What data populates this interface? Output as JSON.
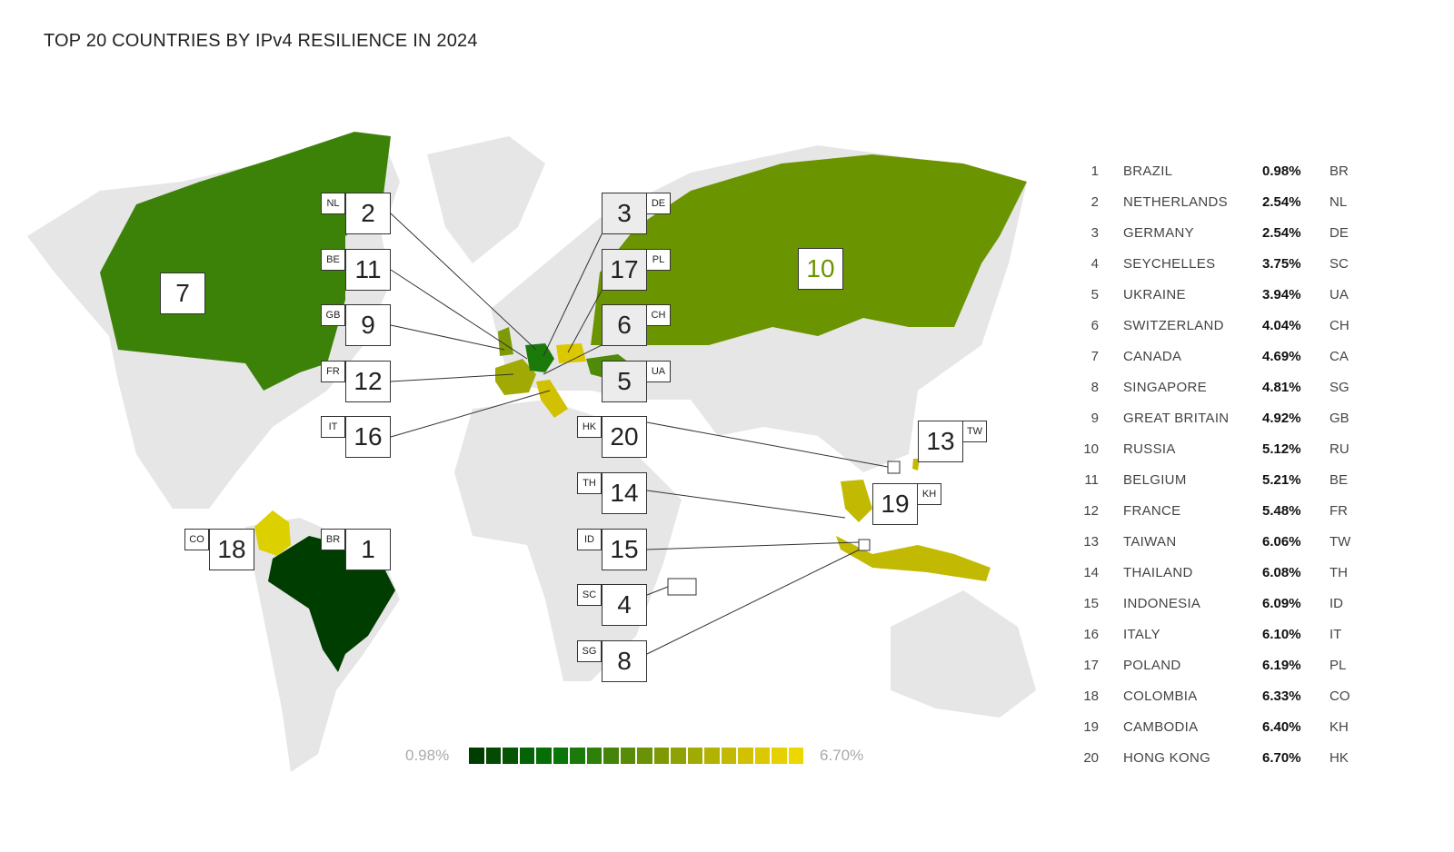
{
  "title": "TOP 20 COUNTRIES BY IPv4 RESILIENCE IN 2024",
  "legend": {
    "min_label": "0.98%",
    "max_label": "6.70%",
    "colors": [
      "#003d00",
      "#034a03",
      "#055505",
      "#066206",
      "#076d07",
      "#0a760a",
      "#1b7a0a",
      "#2f800a",
      "#448509",
      "#578b08",
      "#6a9207",
      "#7d9a06",
      "#8fa205",
      "#a1aa04",
      "#b2b203",
      "#c2ba02",
      "#d1c102",
      "#dcc801",
      "#e5d000",
      "#ecd800"
    ]
  },
  "countries": [
    {
      "rank": "1",
      "name": "BRAZIL",
      "value": "0.98%",
      "code": "BR",
      "color": "#003d00"
    },
    {
      "rank": "2",
      "name": "NETHERLANDS",
      "value": "2.54%",
      "code": "NL",
      "color": "#1b7a0a"
    },
    {
      "rank": "3",
      "name": "GERMANY",
      "value": "2.54%",
      "code": "DE",
      "color": "#1b7a0a"
    },
    {
      "rank": "4",
      "name": "SEYCHELLES",
      "value": "3.75%",
      "code": "SC",
      "color": "#448509"
    },
    {
      "rank": "5",
      "name": "UKRAINE",
      "value": "3.94%",
      "code": "UA",
      "color": "#4f8a09"
    },
    {
      "rank": "6",
      "name": "SWITZERLAND",
      "value": "4.04%",
      "code": "CH",
      "color": "#0a760a"
    },
    {
      "rank": "7",
      "name": "CANADA",
      "value": "4.69%",
      "code": "CA",
      "color": "#3d8208"
    },
    {
      "rank": "8",
      "name": "SINGAPORE",
      "value": "4.81%",
      "code": "SG",
      "color": "#6a9207"
    },
    {
      "rank": "9",
      "name": "GREAT BRITAIN",
      "value": "4.92%",
      "code": "GB",
      "color": "#7d9a06"
    },
    {
      "rank": "10",
      "name": "RUSSIA",
      "value": "5.12%",
      "code": "RU",
      "color": "#6a9400"
    },
    {
      "rank": "11",
      "name": "BELGIUM",
      "value": "5.21%",
      "code": "BE",
      "color": "#8fa205"
    },
    {
      "rank": "12",
      "name": "FRANCE",
      "value": "5.48%",
      "code": "FR",
      "color": "#a1aa04"
    },
    {
      "rank": "13",
      "name": "TAIWAN",
      "value": "6.06%",
      "code": "TW",
      "color": "#c2ba02"
    },
    {
      "rank": "14",
      "name": "THAILAND",
      "value": "6.08%",
      "code": "TH",
      "color": "#b2b203"
    },
    {
      "rank": "15",
      "name": "INDONESIA",
      "value": "6.09%",
      "code": "ID",
      "color": "#c2ba02"
    },
    {
      "rank": "16",
      "name": "ITALY",
      "value": "6.10%",
      "code": "IT",
      "color": "#d1c102"
    },
    {
      "rank": "17",
      "name": "POLAND",
      "value": "6.19%",
      "code": "PL",
      "color": "#dcc801"
    },
    {
      "rank": "18",
      "name": "COLOMBIA",
      "value": "6.33%",
      "code": "CO",
      "color": "#dcd000"
    },
    {
      "rank": "19",
      "name": "CAMBODIA",
      "value": "6.40%",
      "code": "KH",
      "color": "#e5d000"
    },
    {
      "rank": "20",
      "name": "HONG KONG",
      "value": "6.70%",
      "code": "HK",
      "color": "#ecd800"
    }
  ]
}
